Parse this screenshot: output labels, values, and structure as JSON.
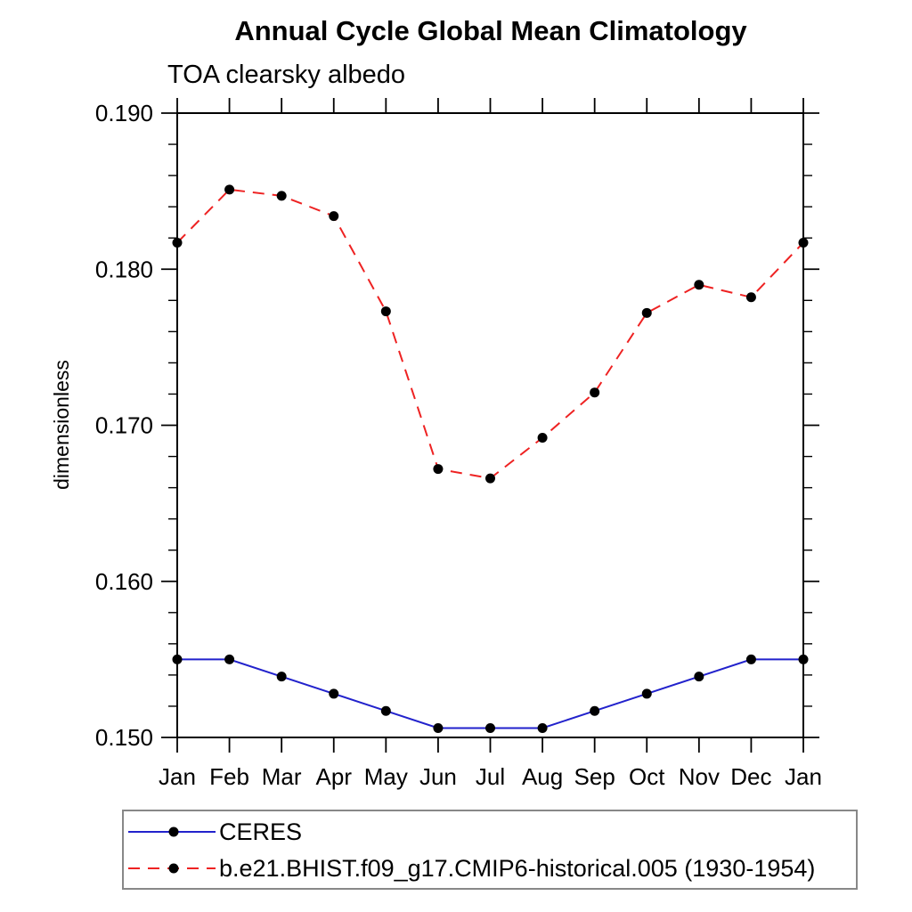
{
  "chart": {
    "title": "Annual Cycle Global Mean Climatology",
    "subtitle": "TOA clearsky albedo",
    "ylabel": "dimensionless"
  },
  "chart_data": {
    "type": "line",
    "title": "Annual Cycle Global Mean Climatology",
    "subtitle": "TOA clearsky albedo",
    "xlabel": "",
    "ylabel": "dimensionless",
    "x_categories": [
      "Jan",
      "Feb",
      "Mar",
      "Apr",
      "May",
      "Jun",
      "Jul",
      "Aug",
      "Sep",
      "Oct",
      "Nov",
      "Dec",
      "Jan"
    ],
    "ylim": [
      0.15,
      0.19
    ],
    "y_major_step": 0.01,
    "y_minor_step": 0.002,
    "y_tick_decimals": 3,
    "y_tick_labels": [
      "0.150",
      "0.160",
      "0.170",
      "0.180",
      "0.190"
    ],
    "grid": false,
    "legend_position": "bottom-left-box",
    "frame_color": "#000000",
    "series": [
      {
        "name": "CERES",
        "color": "#2222cc",
        "dash": "solid",
        "marker": "filled-circle",
        "marker_color": "#000000",
        "values": [
          0.155,
          0.155,
          0.1539,
          0.1528,
          0.1517,
          0.1506,
          0.1506,
          0.1506,
          0.1517,
          0.1528,
          0.1539,
          0.155,
          0.155
        ]
      },
      {
        "name": "b.e21.BHIST.f09_g17.CMIP6-historical.005 (1930-1954)",
        "color": "#ee2222",
        "dash": "dashed",
        "marker": "filled-circle",
        "marker_color": "#000000",
        "values": [
          0.1817,
          0.1851,
          0.1847,
          0.1834,
          0.1773,
          0.1672,
          0.1666,
          0.1692,
          0.1721,
          0.1772,
          0.179,
          0.1782,
          0.1817
        ]
      }
    ]
  }
}
